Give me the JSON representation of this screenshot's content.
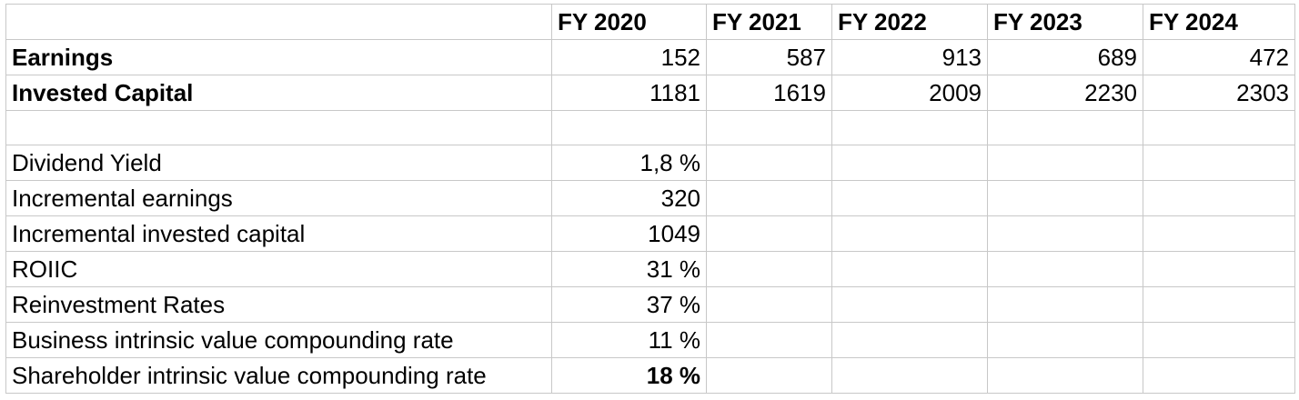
{
  "columns": [
    "",
    "FY 2020",
    "FY 2021",
    "FY 2022",
    "FY 2023",
    "FY 2024"
  ],
  "top_rows": [
    {
      "label": "Earnings",
      "values": [
        "152",
        "587",
        "913",
        "689",
        "472"
      ]
    },
    {
      "label": "Invested Capital",
      "values": [
        "1181",
        "1619",
        "2009",
        "2230",
        "2303"
      ]
    }
  ],
  "metrics": [
    {
      "label": "Dividend Yield",
      "value": "1,8 %"
    },
    {
      "label": "Incremental earnings",
      "value": "320"
    },
    {
      "label": "Incremental invested capital",
      "value": "1049"
    },
    {
      "label": "ROIIC",
      "value": "31 %"
    },
    {
      "label": "Reinvestment Rates",
      "value": "37 %"
    },
    {
      "label": "Business intrinsic value compounding rate",
      "value": "11 %"
    },
    {
      "label": "Shareholder intrinsic value compounding rate",
      "value": "18 %"
    }
  ]
}
